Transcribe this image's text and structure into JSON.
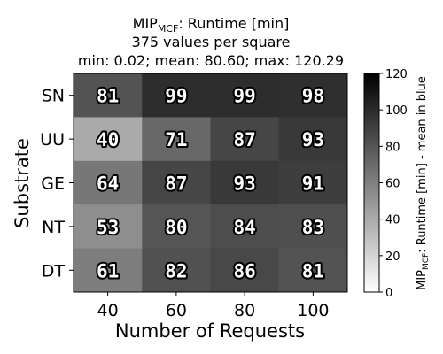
{
  "chart_data": {
    "type": "heatmap",
    "title": {
      "prefix": "MIP",
      "subscript": "MCF",
      "suffix": ": Runtime [min]",
      "line2": "375 values per square",
      "line3": "min: 0.02; mean: 80.60; max: 120.29"
    },
    "xlabel": "Number of Requests",
    "ylabel": "Substrate",
    "x_categories": [
      "40",
      "60",
      "80",
      "100"
    ],
    "y_categories": [
      "SN",
      "UU",
      "GE",
      "NT",
      "DT"
    ],
    "values": [
      [
        81,
        99,
        99,
        98
      ],
      [
        40,
        71,
        87,
        93
      ],
      [
        64,
        87,
        93,
        91
      ],
      [
        53,
        80,
        84,
        83
      ],
      [
        61,
        82,
        86,
        81
      ]
    ],
    "colorbar": {
      "range": [
        0,
        120
      ],
      "ticks": [
        "0",
        "20",
        "40",
        "60",
        "80",
        "100",
        "120"
      ],
      "label_prefix": "MIP",
      "label_subscript": "MCF",
      "label_suffix": ": Runtime [min] - mean in blue",
      "colormap": "greys"
    }
  }
}
